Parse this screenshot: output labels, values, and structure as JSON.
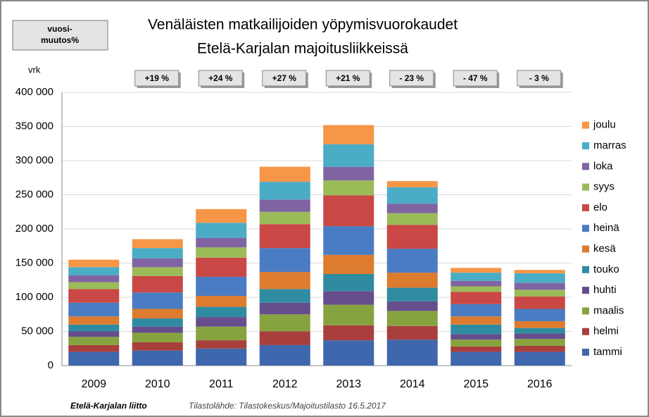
{
  "chart_data": {
    "type": "stacked_bar",
    "title": "Venäläisten matkailijoiden yöpymisvuorokaudet",
    "subtitle": "Etelä-Karjalan majoitusliikkeissä",
    "y_label": "vrk",
    "change_box": [
      "vuosi-",
      "muutos%"
    ],
    "categories": [
      "2009",
      "2010",
      "2011",
      "2012",
      "2013",
      "2014",
      "2015",
      "2016"
    ],
    "annotations": [
      null,
      "+19 %",
      "+24 %",
      "+27 %",
      "+21 %",
      "- 23 %",
      "- 47 %",
      "- 3 %"
    ],
    "series": [
      {
        "name": "tammi",
        "color": "#3f67ad",
        "values": [
          20000,
          22000,
          25000,
          30000,
          37000,
          38000,
          20000,
          20000
        ]
      },
      {
        "name": "helmi",
        "color": "#a93f3c",
        "values": [
          10000,
          12000,
          12000,
          20000,
          22000,
          20000,
          8000,
          9000
        ]
      },
      {
        "name": "maalis",
        "color": "#86a33f",
        "values": [
          12000,
          14000,
          20000,
          25000,
          30000,
          22000,
          10000,
          10000
        ]
      },
      {
        "name": "huhti",
        "color": "#664d8c",
        "values": [
          8000,
          9000,
          14000,
          17000,
          20000,
          14000,
          8000,
          8000
        ]
      },
      {
        "name": "touko",
        "color": "#2f8ba0",
        "values": [
          10000,
          12000,
          15000,
          20000,
          25000,
          20000,
          14000,
          8000
        ]
      },
      {
        "name": "kesä",
        "color": "#dd7b2e",
        "values": [
          12000,
          14000,
          16000,
          25000,
          28000,
          22000,
          12000,
          10000
        ]
      },
      {
        "name": "heinä",
        "color": "#4a7cc3",
        "values": [
          20000,
          24000,
          28000,
          35000,
          42000,
          35000,
          18000,
          18000
        ]
      },
      {
        "name": "elo",
        "color": "#c94744",
        "values": [
          20000,
          24000,
          28000,
          35000,
          45000,
          35000,
          18000,
          18000
        ]
      },
      {
        "name": "syys",
        "color": "#9bbb59",
        "values": [
          10000,
          13000,
          15000,
          18000,
          22000,
          17000,
          8000,
          10000
        ]
      },
      {
        "name": "loka",
        "color": "#8064a2",
        "values": [
          10000,
          13000,
          14000,
          18000,
          20000,
          14000,
          8000,
          10000
        ]
      },
      {
        "name": "marras",
        "color": "#4bacc6",
        "values": [
          12000,
          15000,
          22000,
          26000,
          33000,
          24000,
          12000,
          14000
        ]
      },
      {
        "name": "joulu",
        "color": "#f79646",
        "values": [
          11000,
          13000,
          20000,
          22000,
          28000,
          9000,
          7000,
          5000
        ]
      }
    ],
    "ylim": [
      0,
      400000
    ],
    "yticks": [
      {
        "value": 0,
        "label": "0"
      },
      {
        "value": 50000,
        "label": "50 000"
      },
      {
        "value": 100000,
        "label": "100 000"
      },
      {
        "value": 150000,
        "label": "150 000"
      },
      {
        "value": 200000,
        "label": "200 000"
      },
      {
        "value": 250000,
        "label": "250 000"
      },
      {
        "value": 300000,
        "label": "300 000"
      },
      {
        "value": 350000,
        "label": "350 000"
      },
      {
        "value": 400000,
        "label": "400 000"
      }
    ],
    "grid": true,
    "legend": "right",
    "footer_org": "Etelä-Karjalan liitto",
    "footer_source": "Tilastolähde: Tilastokeskus/Majoitustilasto 16.5.2017"
  }
}
